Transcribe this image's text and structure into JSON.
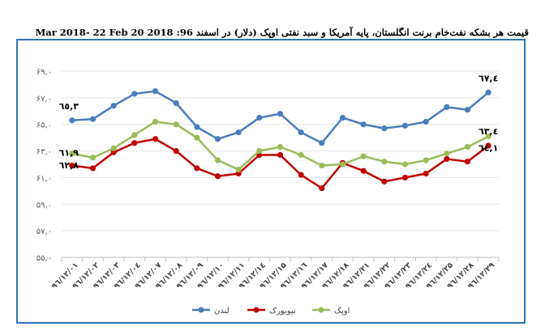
{
  "chart_data": {
    "type": "line",
    "title": "قیمت هر بشکه نفت‌خام برنت انگلستان، پایه آمریکا و سبد نفتی اوپک (دلار) در اسفند 96:  2018 20 Mar 2018- 22 Feb",
    "xlabel": "",
    "ylabel": "",
    "ylim": [
      55,
      69
    ],
    "yticks": [
      55,
      57,
      59,
      61,
      63,
      65,
      67,
      69
    ],
    "ytick_labels": [
      "۵۵,۰",
      "۵۷,۰",
      "۵۹,۰",
      "۶۱,۰",
      "۶۳,۰",
      "۶۵,۰",
      "۶۷,۰",
      "۶۹,۰"
    ],
    "grid": true,
    "legend_position": "bottom",
    "categories": [
      "۹٦/۱۲/۰۱",
      "۹٦/۱۲/۰۲",
      "۹٦/۱۲/۰۳",
      "۹٦/۱۲/۰٤",
      "۹٦/۱۲/۰۷",
      "۹٦/۱۲/۰۸",
      "۹٦/۱۲/۰۹",
      "۹٦/۱۲/۱۰",
      "۹٦/۱۲/۱۱",
      "۹٦/۱۲/۱٤",
      "۹٦/۱۲/۱۵",
      "۹٦/۱۲/۱٦",
      "۹٦/۱۲/۱۷",
      "۹٦/۱۲/۱۸",
      "۹٦/۱۲/۲۱",
      "۹٦/۱۲/۲۲",
      "۹٦/۱۲/۲۳",
      "۹٦/۱۲/۲٤",
      "۹٦/۱۲/۲۵",
      "۹٦/۱۲/۲۸",
      "۹٦/۱۲/۲۹"
    ],
    "series": [
      {
        "name": "لندن",
        "color": "#4a7ebb",
        "values": [
          65.3,
          65.4,
          66.4,
          67.3,
          67.5,
          66.6,
          64.8,
          63.9,
          64.4,
          65.5,
          65.8,
          64.4,
          63.6,
          65.5,
          65.0,
          64.7,
          64.9,
          65.2,
          66.3,
          66.1,
          67.4
        ],
        "labels": {
          "first": "٦٥,٣",
          "last": "٦٧,٤"
        }
      },
      {
        "name": "نیویورک",
        "color": "#c00000",
        "values": [
          61.9,
          61.7,
          62.9,
          63.6,
          63.9,
          63.0,
          61.7,
          61.1,
          61.3,
          62.7,
          62.7,
          61.2,
          60.2,
          62.1,
          61.5,
          60.7,
          61.0,
          61.3,
          62.4,
          62.2,
          63.4
        ],
        "labels": {
          "first": "٦١,٩",
          "last": "٦٣,٤"
        }
      },
      {
        "name": "اوپک",
        "color": "#9bbb59",
        "values": [
          62.8,
          62.5,
          63.2,
          64.2,
          65.2,
          65.0,
          64.0,
          62.3,
          61.6,
          63.0,
          63.3,
          62.7,
          61.9,
          62.0,
          62.6,
          62.2,
          62.0,
          62.3,
          62.8,
          63.3,
          64.1
        ],
        "labels": {
          "first": "٦٢,٨",
          "last": "٦٤,١"
        }
      }
    ]
  }
}
